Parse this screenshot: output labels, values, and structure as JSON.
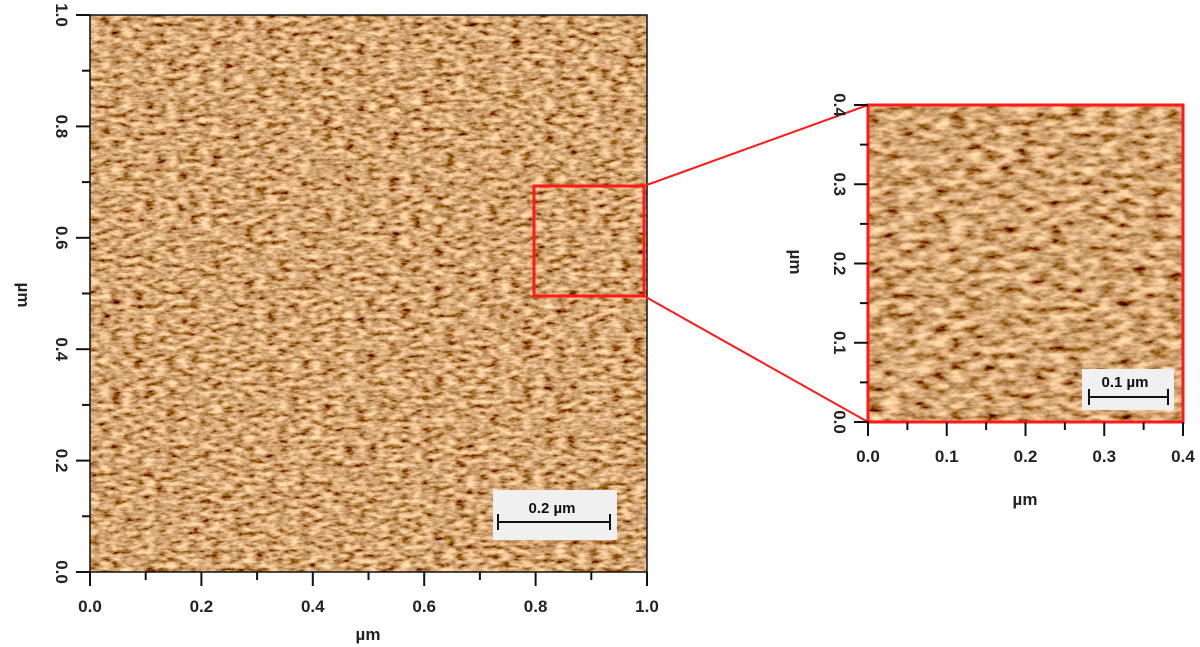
{
  "main_image": {
    "x_axis": {
      "label": "µm",
      "range": [
        0.0,
        1.0
      ],
      "ticks": [
        "0.0",
        "0.2",
        "0.4",
        "0.6",
        "0.8",
        "1.0"
      ]
    },
    "y_axis": {
      "label": "µm",
      "range": [
        0.0,
        1.0
      ],
      "ticks": [
        "0.0",
        "0.2",
        "0.4",
        "0.6",
        "0.8",
        "1.0"
      ]
    },
    "scale_bar": "0.2 µm",
    "zoom_region_um": {
      "x": [
        0.8,
        1.0
      ],
      "y": [
        0.5,
        0.7
      ]
    }
  },
  "inset_image": {
    "x_axis": {
      "label": "µm",
      "range": [
        0.0,
        0.4
      ],
      "ticks": [
        "0.0",
        "0.1",
        "0.2",
        "0.3",
        "0.4"
      ]
    },
    "y_axis": {
      "label": "µm",
      "range": [
        0.0,
        0.4
      ],
      "ticks": [
        "0.0",
        "0.1",
        "0.2",
        "0.3",
        "0.4"
      ]
    },
    "scale_bar": "0.1 µm"
  },
  "colors": {
    "highlight": "#ff1a1a",
    "texture_mid": "#b07a3a",
    "texture_dark": "#3a2010",
    "texture_light": "#f2d8a0"
  }
}
